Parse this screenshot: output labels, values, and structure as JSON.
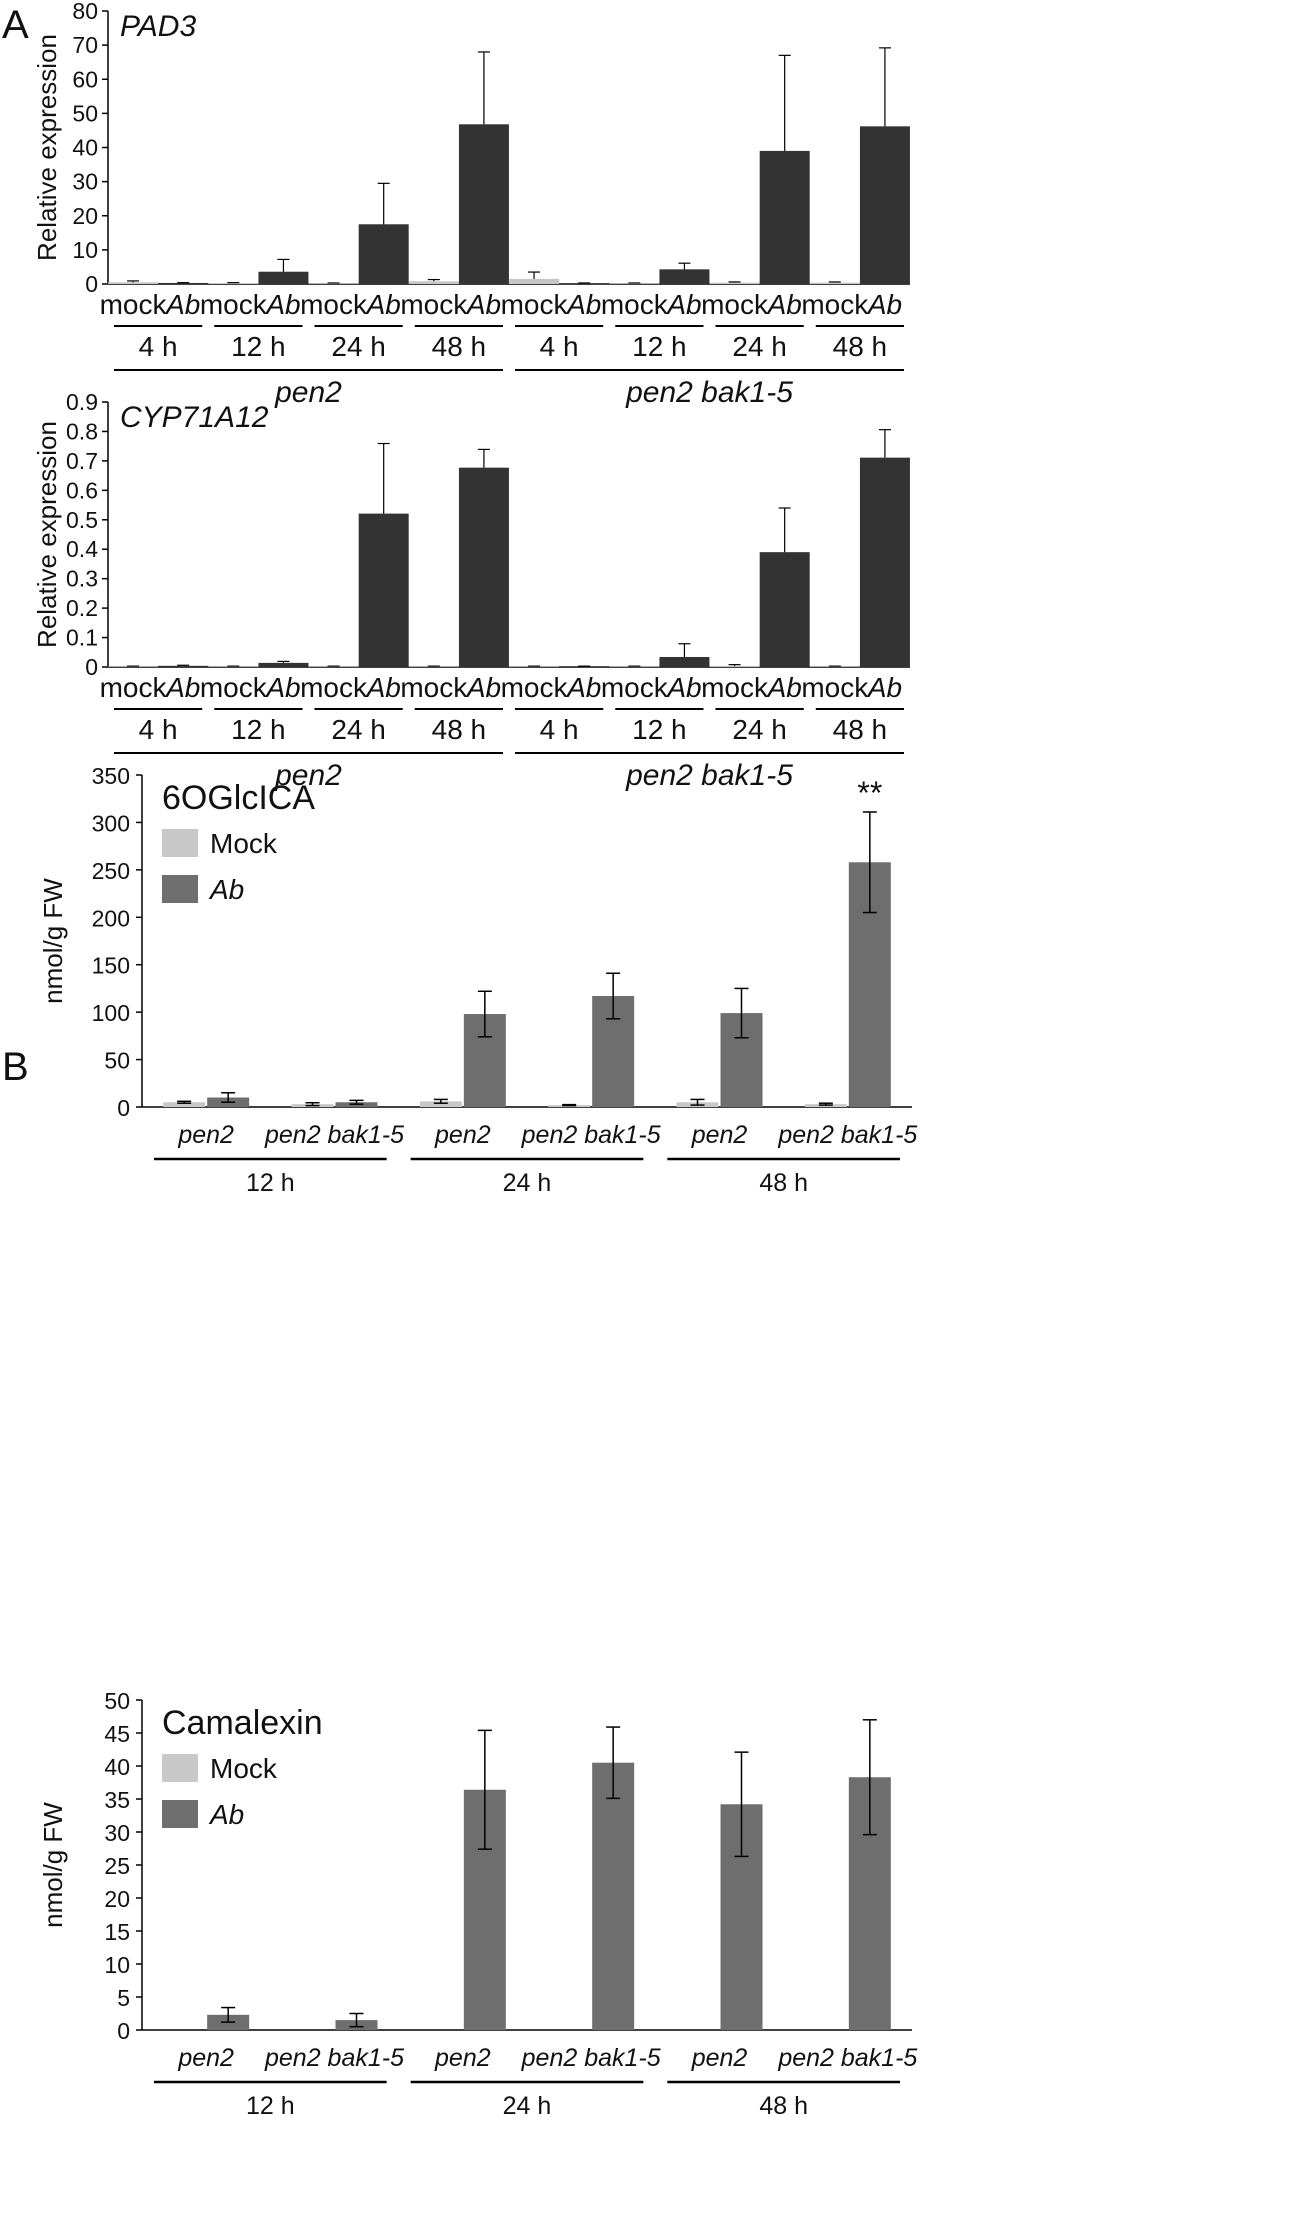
{
  "figure": {
    "panel_a_label": "A",
    "panel_b_label": "B"
  },
  "colors": {
    "mock_a": "#c6c6c6",
    "ab_a": "#333333",
    "mock_b": "#c8c8c8",
    "ab_b": "#6e6e6e",
    "axis": "#000000"
  },
  "chart_data": [
    {
      "id": "pad3",
      "type": "bar",
      "title": "PAD3",
      "ylabel": "Relative expression",
      "ylim": [
        0,
        80
      ],
      "yticks": [
        "0",
        "10",
        "20",
        "30",
        "40",
        "50",
        "60",
        "70",
        "80"
      ],
      "treatments": [
        "mock",
        "Ab"
      ],
      "times": [
        "4 h",
        "12 h",
        "24 h",
        "48 h"
      ],
      "genotypes": [
        "pen2",
        "pen2 bak1-5"
      ],
      "values": [
        0.5,
        0.3,
        0.3,
        3.6,
        0.2,
        17.5,
        0.8,
        46.8,
        1.5,
        0.2,
        0.2,
        4.3,
        0.4,
        39.0,
        0.4,
        46.2
      ],
      "errors": [
        0.4,
        0.1,
        0.1,
        3.6,
        0.1,
        12.0,
        0.5,
        21.2,
        2.0,
        0.1,
        0.1,
        1.8,
        0.2,
        28.0,
        0.2,
        23.0
      ]
    },
    {
      "id": "cyp71a12",
      "type": "bar",
      "title": "CYP71A12",
      "ylabel": "Relative expression",
      "ylim": [
        0,
        0.9
      ],
      "yticks": [
        "0",
        "0.1",
        "0.2",
        "0.3",
        "0.4",
        "0.5",
        "0.6",
        "0.7",
        "0.8",
        "0.9"
      ],
      "treatments": [
        "mock",
        "Ab"
      ],
      "times": [
        "4 h",
        "12 h",
        "24 h",
        "48 h"
      ],
      "genotypes": [
        "pen2",
        "pen2 bak1-5"
      ],
      "values": [
        0.002,
        0.004,
        0.002,
        0.014,
        0.002,
        0.521,
        0.002,
        0.677,
        0.002,
        0.002,
        0.002,
        0.034,
        0.003,
        0.39,
        0.002,
        0.711
      ],
      "errors": [
        0.001,
        0.002,
        0.001,
        0.005,
        0.001,
        0.238,
        0.001,
        0.062,
        0.001,
        0.001,
        0.001,
        0.045,
        0.005,
        0.15,
        0.001,
        0.095
      ]
    },
    {
      "id": "6oglcica",
      "type": "bar",
      "title": "6OGlcICA",
      "ylabel": "nmol/g FW",
      "ylim": [
        0,
        350
      ],
      "yticks": [
        "0",
        "50",
        "100",
        "150",
        "200",
        "250",
        "300",
        "350"
      ],
      "legend": [
        "Mock",
        "Ab"
      ],
      "groups": [
        "pen2",
        "pen2 bak1-5",
        "pen2",
        "pen2 bak1-5",
        "pen2",
        "pen2 bak1-5"
      ],
      "times": [
        "12 h",
        "24 h",
        "48 h"
      ],
      "mock_values": [
        5,
        3,
        6,
        2,
        5,
        3
      ],
      "mock_errors": [
        1,
        1.5,
        2,
        0.5,
        3,
        1
      ],
      "ab_values": [
        10,
        5,
        98,
        117,
        99,
        258
      ],
      "ab_errors": [
        5,
        2,
        24,
        24,
        26,
        53
      ],
      "annotation": "**"
    },
    {
      "id": "camalexin",
      "type": "bar",
      "title": "Camalexin",
      "ylabel": "nmol/g FW",
      "ylim": [
        0,
        50
      ],
      "yticks": [
        "0",
        "5",
        "10",
        "15",
        "20",
        "25",
        "30",
        "35",
        "40",
        "45",
        "50"
      ],
      "legend": [
        "Mock",
        "Ab"
      ],
      "groups": [
        "pen2",
        "pen2 bak1-5",
        "pen2",
        "pen2 bak1-5",
        "pen2",
        "pen2 bak1-5"
      ],
      "times": [
        "12 h",
        "24 h",
        "48 h"
      ],
      "mock_values": [
        0,
        0,
        0,
        0,
        0,
        0
      ],
      "mock_errors": [
        0,
        0,
        0,
        0,
        0,
        0
      ],
      "ab_values": [
        2.3,
        1.5,
        36.4,
        40.5,
        34.2,
        38.3
      ],
      "ab_errors": [
        1.1,
        1.0,
        9.0,
        5.4,
        7.9,
        8.7
      ]
    }
  ]
}
